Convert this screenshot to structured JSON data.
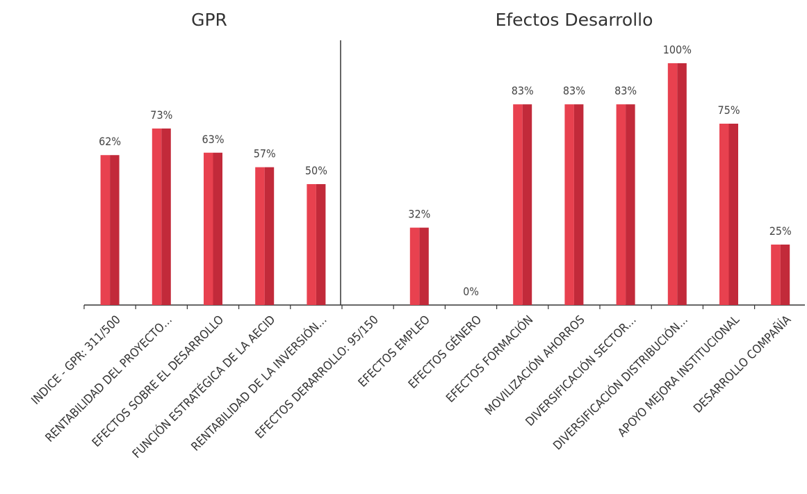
{
  "chart_data": {
    "type": "bar",
    "group_titles": [
      "GPR",
      "Efectos Desarrollo"
    ],
    "categories": [
      "INDICE - GPR: 311/500",
      "RENTABILIDAD DEL PROYECTO…",
      "EFECTOS SOBRE EL DESARROLLO",
      "FUNCIÓN ESTRATÉGICA DE LA AECID",
      "RENTABILIDAD DE LA INVERSIÓN…",
      "EFECTOS DERARROLLO: 95/150",
      "EFECTOS EMPLEO",
      "EFECTOS GÉNERO",
      "EFECTOS FORMACIÓN",
      "MOVILIZACIÓN AHORROS",
      "DIVERSIFICACIÓN SECTOR…",
      "DIVERSIFICACIÓN DISTRIBUCIÓN…",
      "APOYO MEJORA INSTITUCIONAL",
      "DESARROLLO COMPAÑÍA"
    ],
    "values": [
      62,
      73,
      63,
      57,
      50,
      null,
      32,
      0,
      83,
      83,
      83,
      100,
      75,
      25
    ],
    "data_labels": [
      "62%",
      "73%",
      "63%",
      "57%",
      "50%",
      "",
      "32%",
      "0%",
      "83%",
      "83%",
      "83%",
      "100%",
      "75%",
      "25%"
    ],
    "ylim": [
      0,
      100
    ],
    "grid": false,
    "legend": "none",
    "colors": {
      "bar": "#e8414f",
      "bar_shade": "#c22a3a",
      "axis": "#333333",
      "label": "#444444"
    }
  }
}
